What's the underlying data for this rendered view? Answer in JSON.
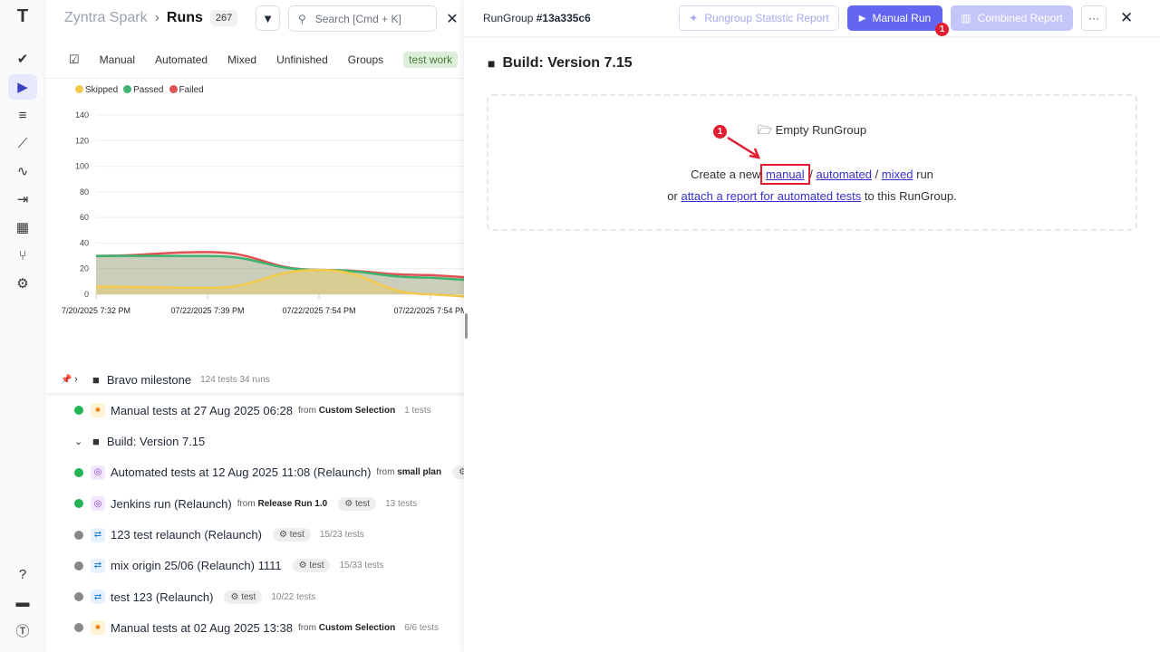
{
  "rail": {
    "icons": [
      "logo-icon",
      "check-icon",
      "play-icon",
      "list-check-icon",
      "steps-icon",
      "pulse-icon",
      "import-icon",
      "report-icon",
      "branch-icon",
      "gear-icon",
      "help-icon",
      "folder-icon",
      "profile-logo-icon"
    ]
  },
  "header": {
    "project": "Zyntra Spark",
    "separator": "›",
    "page": "Runs",
    "count": "267",
    "search_placeholder": "Search [Cmd + K]"
  },
  "tabs": [
    "Manual",
    "Automated",
    "Mixed",
    "Unfinished",
    "Groups",
    "test work"
  ],
  "legend": [
    {
      "label": "Skipped",
      "color": "#f2c94c"
    },
    {
      "label": "Passed",
      "color": "#3cb371"
    },
    {
      "label": "Failed",
      "color": "#e05252"
    }
  ],
  "chart_data": {
    "type": "area",
    "categories": [
      "7/20/2025 7:32 PM",
      "07/22/2025 7:39 PM",
      "07/22/2025 7:54 PM",
      "07/22/2025 7:54 PM"
    ],
    "yticks": [
      0,
      20,
      40,
      60,
      80,
      100,
      120,
      140
    ],
    "ylim": [
      0,
      140
    ],
    "grid": true,
    "legend": "top-left",
    "series": [
      {
        "name": "Failed",
        "color": "#e05252",
        "values": [
          30,
          33,
          19,
          15
        ]
      },
      {
        "name": "Passed",
        "color": "#3cb371",
        "values": [
          30,
          30,
          19,
          13
        ]
      },
      {
        "name": "Skipped",
        "color": "#f2c94c",
        "values": [
          6,
          5,
          19,
          0
        ]
      }
    ]
  },
  "list": [
    {
      "kind": "group",
      "expanded": false,
      "title": "Bravo milestone",
      "meta": "124 tests  34 runs"
    },
    {
      "kind": "run",
      "status": "passed",
      "type": "manual",
      "title": "Manual tests at 27 Aug 2025 06:28",
      "from": "Custom Selection",
      "meta": "1 tests"
    },
    {
      "kind": "group",
      "expanded": true,
      "title": "Build: Version 7.15"
    },
    {
      "kind": "run",
      "status": "passed",
      "type": "automated",
      "title": "Automated tests at 12 Aug 2025 11:08 (Relaunch)",
      "from": "small plan",
      "tag": ""
    },
    {
      "kind": "run",
      "status": "passed",
      "type": "automated",
      "title": "Jenkins run (Relaunch)",
      "from": "Release Run 1.0",
      "tag": "test",
      "meta": "13 tests"
    },
    {
      "kind": "run",
      "status": "unfinished",
      "type": "mixed",
      "title": "123 test relaunch (Relaunch)",
      "tag": "test",
      "meta": "15/23 tests"
    },
    {
      "kind": "run",
      "status": "unfinished",
      "type": "mixed",
      "title": "mix origin 25/06 (Relaunch) 1111",
      "tag": "test",
      "meta": "15/33 tests"
    },
    {
      "kind": "run",
      "status": "unfinished",
      "type": "mixed",
      "title": "test 123  (Relaunch)",
      "tag": "test",
      "meta": "10/22 tests"
    },
    {
      "kind": "run",
      "status": "unfinished",
      "type": "manual",
      "title": "Manual tests at 02 Aug 2025 13:38",
      "from": "Custom Selection",
      "meta": "6/6 tests"
    }
  ],
  "from_label": "from",
  "panel": {
    "rungroup_label": "RunGroup",
    "rungroup_id": "#13a335c6",
    "statistic_btn": "Rungroup Statistic Report",
    "manual_btn": "Manual Run",
    "combined_btn": "Combined Report",
    "more": "···",
    "badge": "1",
    "title": "Build: Version 7.15",
    "empty_title": "Empty RunGroup",
    "create_prefix": "Create a new",
    "manual": "manual",
    "automated": "automated",
    "mixed": "mixed",
    "run_suffix": "run",
    "or": "or",
    "attach": "attach a report for automated tests",
    "attach_suffix": "to this RunGroup.",
    "annotation": "1"
  }
}
